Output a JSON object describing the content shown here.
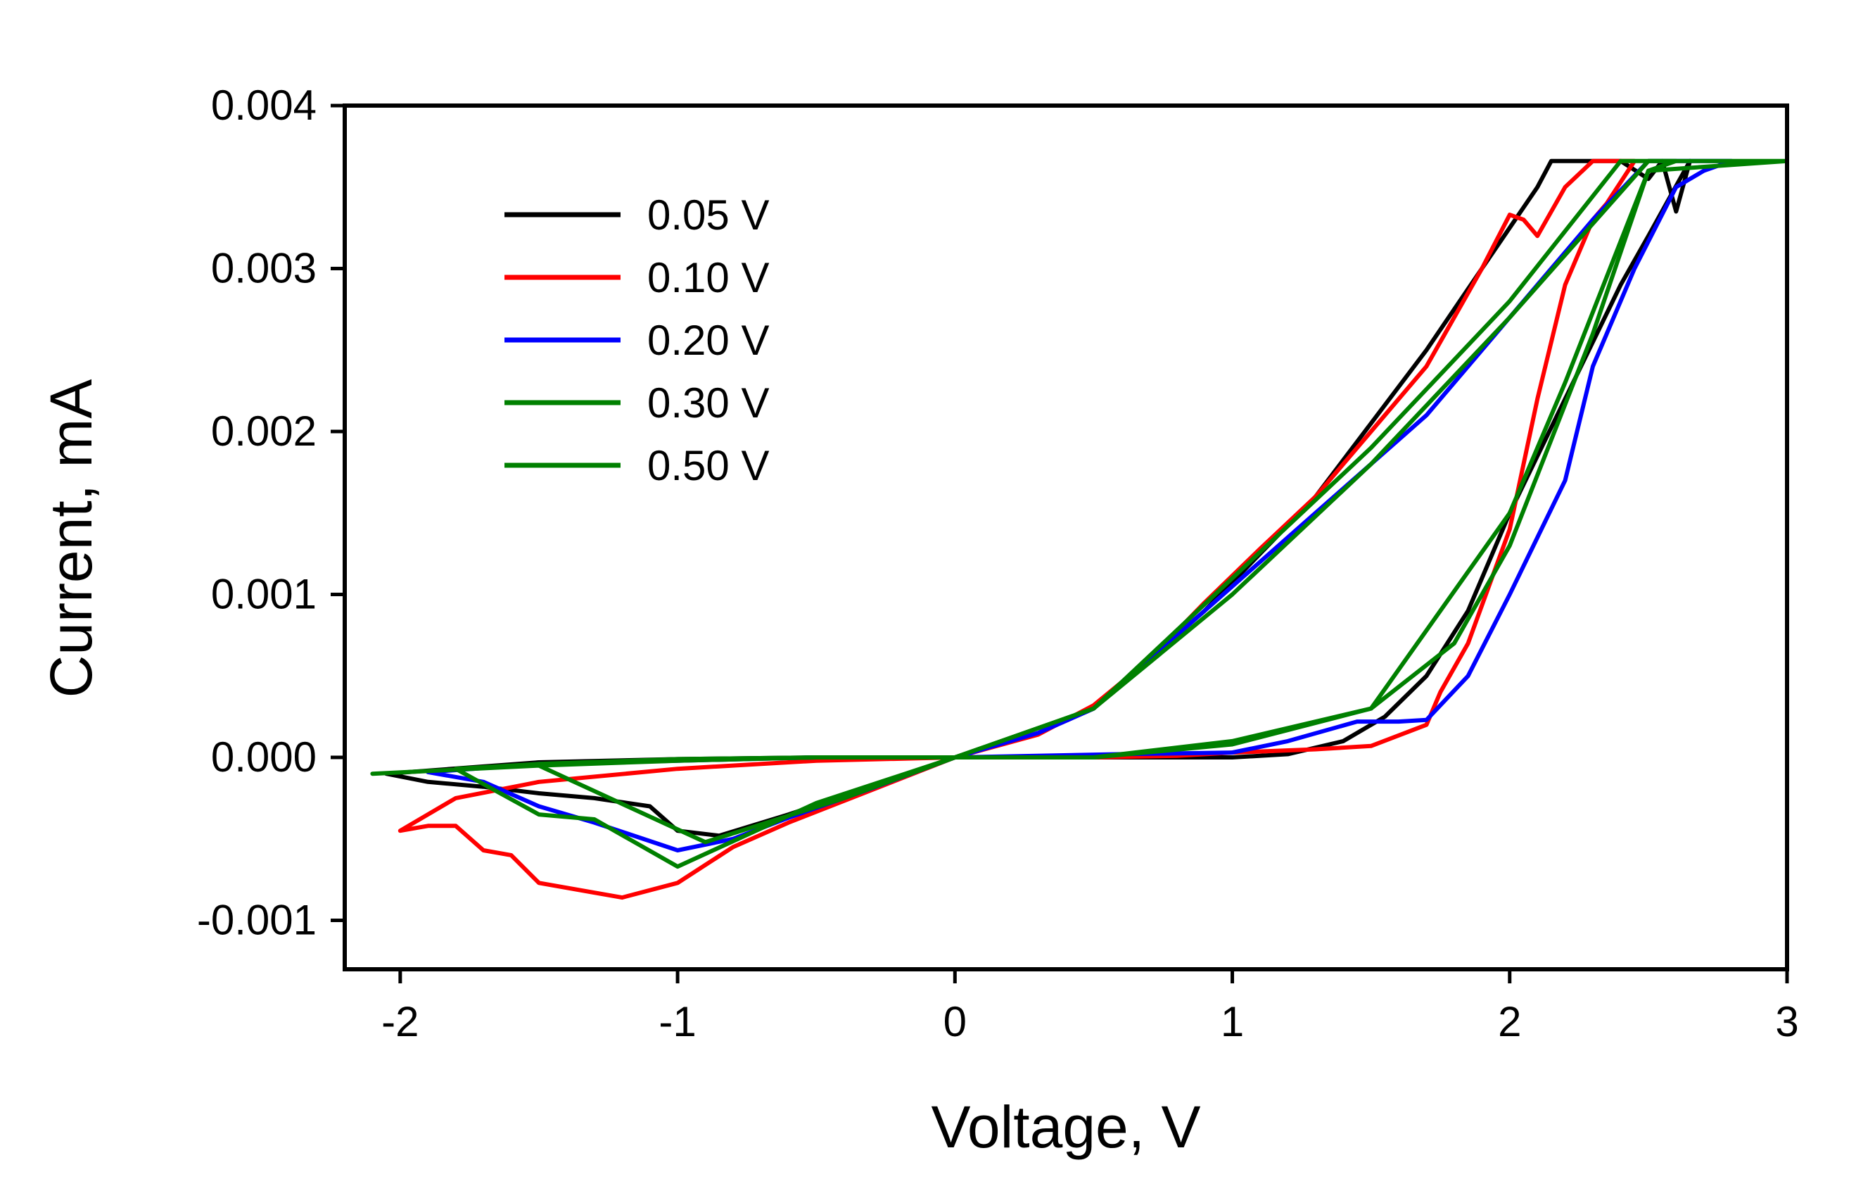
{
  "chart_data": {
    "type": "line",
    "title": "",
    "xlabel": "Voltage, V",
    "ylabel": "Current, mA",
    "xlim": [
      -2.2,
      3
    ],
    "ylim": [
      -0.0013,
      0.004
    ],
    "x_ticks": [
      -2,
      -1,
      0,
      1,
      2,
      3
    ],
    "x_tick_labels": [
      "-2",
      "-1",
      "0",
      "1",
      "2",
      "3"
    ],
    "y_ticks": [
      -0.001,
      0.0,
      0.001,
      0.002,
      0.003,
      0.004
    ],
    "y_tick_labels": [
      "-0.001",
      "0.000",
      "0.001",
      "0.002",
      "0.003",
      "0.004"
    ],
    "grid": false,
    "legend_position": "top-left",
    "series": [
      {
        "name": "0.05 V",
        "color": "#000000",
        "points": [
          [
            0,
            0
          ],
          [
            0.3,
            0.00015
          ],
          [
            0.5,
            0.0003
          ],
          [
            0.7,
            0.0006
          ],
          [
            0.9,
            0.0009
          ],
          [
            1.1,
            0.00125
          ],
          [
            1.3,
            0.0016
          ],
          [
            1.5,
            0.00205
          ],
          [
            1.7,
            0.0025
          ],
          [
            1.9,
            0.003
          ],
          [
            2.1,
            0.0035
          ],
          [
            2.15,
            0.00366
          ],
          [
            2.4,
            0.00366
          ],
          [
            2.5,
            0.00355
          ],
          [
            2.55,
            0.00366
          ],
          [
            2.6,
            0.00335
          ],
          [
            2.65,
            0.00366
          ],
          [
            2.5,
            0.0032
          ],
          [
            2.4,
            0.0029
          ],
          [
            2.2,
            0.0022
          ],
          [
            2.0,
            0.0015
          ],
          [
            1.85,
            0.0009
          ],
          [
            1.7,
            0.0005
          ],
          [
            1.55,
            0.00025
          ],
          [
            1.4,
            0.0001
          ],
          [
            1.2,
            2e-05
          ],
          [
            1.0,
            0.0
          ],
          [
            0.5,
            0.0
          ],
          [
            0,
            0
          ],
          [
            -0.3,
            -0.00018
          ],
          [
            -0.6,
            -0.00035
          ],
          [
            -0.85,
            -0.00048
          ],
          [
            -1.0,
            -0.00045
          ],
          [
            -1.1,
            -0.0003
          ],
          [
            -1.3,
            -0.00025
          ],
          [
            -1.5,
            -0.00022
          ],
          [
            -1.7,
            -0.00018
          ],
          [
            -1.9,
            -0.00015
          ],
          [
            -2.05,
            -0.0001
          ],
          [
            -1.5,
            -3e-05
          ],
          [
            -1.0,
            -1e-05
          ],
          [
            -0.5,
            0.0
          ],
          [
            0,
            0
          ]
        ]
      },
      {
        "name": "0.10 V",
        "color": "#ff0000",
        "points": [
          [
            0,
            0
          ],
          [
            0.3,
            0.00014
          ],
          [
            0.5,
            0.00032
          ],
          [
            0.7,
            0.0006
          ],
          [
            0.9,
            0.00095
          ],
          [
            1.1,
            0.00128
          ],
          [
            1.3,
            0.0016
          ],
          [
            1.5,
            0.002
          ],
          [
            1.7,
            0.0024
          ],
          [
            1.9,
            0.003
          ],
          [
            2.0,
            0.00333
          ],
          [
            2.05,
            0.0033
          ],
          [
            2.1,
            0.0032
          ],
          [
            2.2,
            0.0035
          ],
          [
            2.3,
            0.00366
          ],
          [
            2.45,
            0.00366
          ],
          [
            2.35,
            0.0034
          ],
          [
            2.3,
            0.0033
          ],
          [
            2.2,
            0.0029
          ],
          [
            2.1,
            0.0022
          ],
          [
            2.0,
            0.0014
          ],
          [
            1.85,
            0.0007
          ],
          [
            1.75,
            0.0004
          ],
          [
            1.7,
            0.0002
          ],
          [
            1.5,
            7e-05
          ],
          [
            1.3,
            5e-05
          ],
          [
            1.0,
            3e-05
          ],
          [
            0.8,
            1e-05
          ],
          [
            0.5,
            0.0
          ],
          [
            0,
            0
          ],
          [
            -0.3,
            -0.0002
          ],
          [
            -0.6,
            -0.0004
          ],
          [
            -0.8,
            -0.00055
          ],
          [
            -1.0,
            -0.00077
          ],
          [
            -1.2,
            -0.00086
          ],
          [
            -1.5,
            -0.00077
          ],
          [
            -1.6,
            -0.0006
          ],
          [
            -1.7,
            -0.00057
          ],
          [
            -1.8,
            -0.00042
          ],
          [
            -1.9,
            -0.00042
          ],
          [
            -2.0,
            -0.00045
          ],
          [
            -1.8,
            -0.00025
          ],
          [
            -1.5,
            -0.00015
          ],
          [
            -1.0,
            -7e-05
          ],
          [
            -0.5,
            -2e-05
          ],
          [
            0,
            0
          ]
        ]
      },
      {
        "name": "0.20 V",
        "color": "#0000ff",
        "points": [
          [
            0,
            0
          ],
          [
            0.3,
            0.00015
          ],
          [
            0.5,
            0.0003
          ],
          [
            0.7,
            0.0006
          ],
          [
            0.9,
            0.0009
          ],
          [
            1.1,
            0.0012
          ],
          [
            1.3,
            0.0015
          ],
          [
            1.5,
            0.0018
          ],
          [
            1.7,
            0.0021
          ],
          [
            1.9,
            0.0025
          ],
          [
            2.1,
            0.0029
          ],
          [
            2.3,
            0.0033
          ],
          [
            2.5,
            0.00366
          ],
          [
            2.8,
            0.00366
          ],
          [
            2.7,
            0.0036
          ],
          [
            2.6,
            0.0035
          ],
          [
            2.45,
            0.003
          ],
          [
            2.3,
            0.0024
          ],
          [
            2.2,
            0.0017
          ],
          [
            2.0,
            0.001
          ],
          [
            1.85,
            0.0005
          ],
          [
            1.7,
            0.00023
          ],
          [
            1.6,
            0.00022
          ],
          [
            1.45,
            0.00022
          ],
          [
            1.2,
            0.0001
          ],
          [
            1.0,
            3e-05
          ],
          [
            0.6,
            2e-05
          ],
          [
            0,
            0
          ],
          [
            -0.3,
            -0.00019
          ],
          [
            -0.6,
            -0.00037
          ],
          [
            -0.8,
            -0.0005
          ],
          [
            -1.0,
            -0.00057
          ],
          [
            -1.3,
            -0.0004
          ],
          [
            -1.5,
            -0.0003
          ],
          [
            -1.7,
            -0.00015
          ],
          [
            -1.9,
            -9e-05
          ],
          [
            -1.5,
            -4e-05
          ],
          [
            -1.0,
            -2e-05
          ],
          [
            -0.5,
            0.0
          ],
          [
            0,
            0
          ]
        ]
      },
      {
        "name": "0.30 V",
        "color": "#008000",
        "points": [
          [
            0,
            0
          ],
          [
            0.5,
            0.0003
          ],
          [
            1.0,
            0.0011
          ],
          [
            1.5,
            0.0019
          ],
          [
            2.0,
            0.0028
          ],
          [
            2.4,
            0.00366
          ],
          [
            2.6,
            0.00366
          ],
          [
            2.5,
            0.0036
          ],
          [
            2.3,
            0.0026
          ],
          [
            2.0,
            0.0013
          ],
          [
            1.8,
            0.0007
          ],
          [
            1.5,
            0.0003
          ],
          [
            1.0,
            0.0001
          ],
          [
            0.5,
            0.0
          ],
          [
            0,
            0
          ],
          [
            -0.5,
            -0.00028
          ],
          [
            -1.0,
            -0.00067
          ],
          [
            -1.3,
            -0.00038
          ],
          [
            -1.5,
            -0.00035
          ],
          [
            -1.8,
            -7e-05
          ],
          [
            -1.5,
            -4e-05
          ],
          [
            -1.0,
            -1e-05
          ],
          [
            -0.5,
            0.0
          ],
          [
            0,
            0
          ]
        ]
      },
      {
        "name": "0.50 V",
        "color": "#008000",
        "points": [
          [
            0,
            0
          ],
          [
            0.5,
            0.0003
          ],
          [
            1.0,
            0.001
          ],
          [
            1.5,
            0.0018
          ],
          [
            2.0,
            0.0027
          ],
          [
            2.5,
            0.00366
          ],
          [
            3.0,
            0.00366
          ],
          [
            2.5,
            0.0036
          ],
          [
            2.2,
            0.0023
          ],
          [
            2.0,
            0.0015
          ],
          [
            1.5,
            0.0003
          ],
          [
            1.0,
            8e-05
          ],
          [
            0.5,
            0.0
          ],
          [
            0,
            0
          ],
          [
            -0.4,
            -0.00025
          ],
          [
            -0.9,
            -0.00052
          ],
          [
            -1.5,
            -5e-05
          ],
          [
            -2.1,
            -0.0001
          ],
          [
            -1.5,
            -5e-05
          ],
          [
            -1.0,
            -2e-05
          ],
          [
            -0.5,
            0.0
          ],
          [
            0,
            0
          ]
        ]
      }
    ]
  }
}
